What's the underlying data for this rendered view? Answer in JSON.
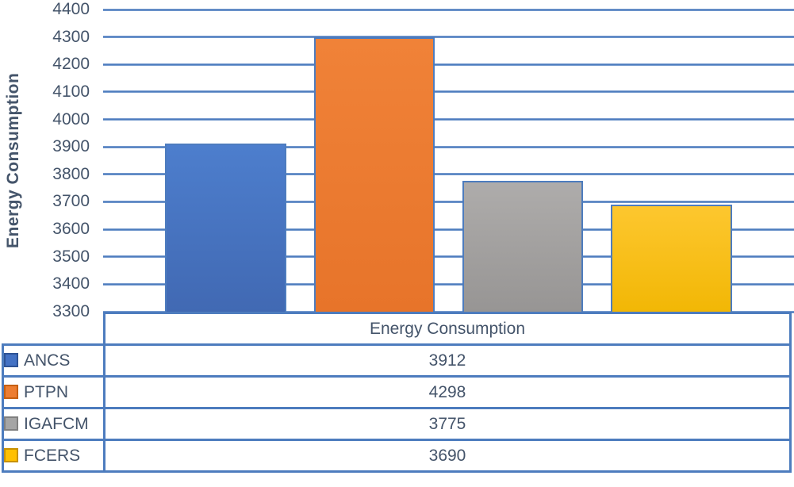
{
  "chart_data": {
    "type": "bar",
    "title": "",
    "ylabel": "Energy Consumption",
    "categories": [
      "ANCS",
      "PTPN",
      "IGAFCM",
      "FCERS"
    ],
    "values": [
      3912,
      4298,
      3775,
      3690
    ],
    "ylim": [
      3300,
      4400
    ],
    "yticks": [
      4400,
      4300,
      4200,
      4100,
      4000,
      3900,
      3800,
      3700,
      3600,
      3500,
      3400,
      3300
    ],
    "grid": true,
    "legend_position": "left-column-of-data-table",
    "data_table": {
      "header": "Energy Consumption"
    },
    "bar_colors": [
      [
        "#4d7ecd",
        "#4169b3"
      ],
      [
        "#f08238",
        "#e7742a"
      ],
      [
        "#aeacab",
        "#979594"
      ],
      [
        "#fdc72f",
        "#f2b705"
      ]
    ],
    "swatch_colors": [
      "#4472c4",
      "#ed7d31",
      "#a5a5a5",
      "#ffc000"
    ],
    "swatch_borders": [
      "#2e5395",
      "#c55f11",
      "#808080",
      "#c79100"
    ]
  },
  "colors": {
    "text": "#44546a",
    "line": "#4d7cbe",
    "background": "#ffffff"
  }
}
